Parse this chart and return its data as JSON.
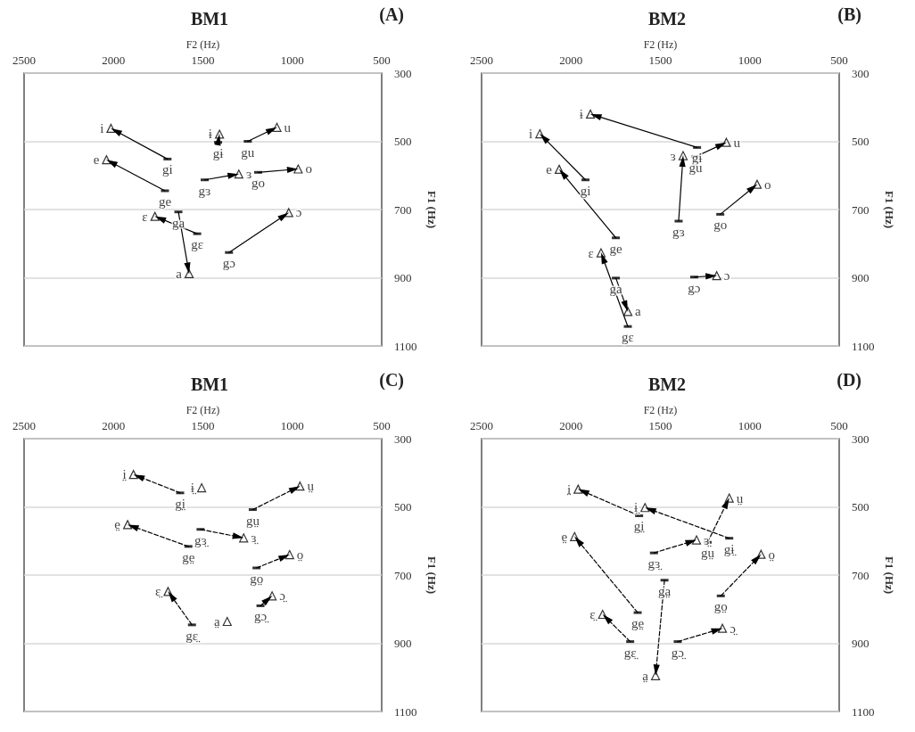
{
  "chart_data": [
    {
      "type": "scatter",
      "title": "BM1",
      "annotations": [
        "(A)"
      ],
      "xlabel": "F2 (Hz)",
      "ylabel": "F1 (Hz)",
      "xlim": [
        2500,
        500
      ],
      "xticks": [
        2500,
        2000,
        1500,
        1000,
        500
      ],
      "ylim": [
        1100,
        300
      ],
      "yticks": [
        300,
        500,
        700,
        900,
        1100
      ],
      "grid": "y",
      "series": [
        {
          "marker": "triangle",
          "color": "#000000",
          "x": [
            2014,
            1407,
            1086,
            2039,
            1299,
            967,
            1768,
            1020,
            1577
          ],
          "values": [
            462,
            479,
            459,
            554,
            596,
            581,
            720,
            709,
            888
          ],
          "value_labels": [
            "i",
            "ɨ",
            "u",
            "e",
            "ɜ",
            "o",
            "ɛ",
            "ɔ",
            "a"
          ]
        },
        {
          "marker": "square",
          "color": "#000000",
          "x": [
            1698,
            1415,
            1249,
            1490,
            1191,
            1712,
            1637,
            1532,
            1354
          ],
          "values": [
            552,
            503,
            500,
            613,
            591,
            645,
            707,
            771,
            826
          ],
          "value_labels": [
            "gi",
            "gɨ",
            "gu",
            "gɜ",
            "go",
            "ge",
            "ga",
            "gɛ",
            "gɔ"
          ]
        },
        {
          "type": "line",
          "line_style": "solid",
          "color": "#000000",
          "x": [
            1698,
            2014,
            null,
            1415,
            1407,
            null,
            1249,
            1086,
            null,
            1490,
            1299,
            null,
            1191,
            967,
            null,
            1712,
            2039,
            null,
            1637,
            1577,
            null,
            1532,
            1768,
            null,
            1354,
            1020
          ],
          "values": [
            552,
            462,
            null,
            503,
            479,
            null,
            500,
            459,
            null,
            613,
            596,
            null,
            591,
            581,
            null,
            645,
            554,
            null,
            707,
            888,
            null,
            771,
            720,
            null,
            826,
            709
          ]
        }
      ]
    },
    {
      "type": "scatter",
      "title": "BM2",
      "annotations": [
        "(B)"
      ],
      "xlabel": "F2 (Hz)",
      "ylabel": "F1 (Hz)",
      "xlim": [
        2500,
        500
      ],
      "xticks": [
        2500,
        2000,
        1500,
        1000,
        500
      ],
      "ylim": [
        1100,
        300
      ],
      "yticks": [
        300,
        500,
        700,
        900,
        1100
      ],
      "grid": "y",
      "series": [
        {
          "marker": "triangle",
          "color": "#000000",
          "x": [
            1891,
            2174,
            2066,
            1373,
            1131,
            959,
            1832,
            1185,
            1682
          ],
          "values": [
            420,
            478,
            582,
            542,
            503,
            626,
            827,
            894,
            999
          ],
          "value_labels": [
            "ɨ",
            "i",
            "e",
            "ɜ",
            "u",
            "o",
            "ɛ",
            "ɔ",
            "a"
          ]
        },
        {
          "marker": "square",
          "color": "#000000",
          "x": [
            1295,
            1303,
            1919,
            1398,
            1165,
            1749,
            1749,
            1311,
            1682
          ],
          "values": [
            518,
            545,
            613,
            734,
            714,
            783,
            901,
            898,
            1043
          ],
          "value_labels": [
            "gɨ",
            "gu",
            "gi",
            "gɜ",
            "go",
            "ge",
            "ga",
            "gɔ",
            "gɛ"
          ]
        },
        {
          "type": "line",
          "line_style": "solid",
          "color": "#000000",
          "x": [
            1295,
            1891,
            null,
            1303,
            1131,
            null,
            1919,
            2174,
            null,
            1398,
            1373,
            null,
            1165,
            959,
            null,
            1749,
            2066,
            null,
            1749,
            1682,
            null,
            1311,
            1185,
            null,
            1682,
            1832
          ],
          "values": [
            518,
            420,
            null,
            545,
            503,
            null,
            613,
            478,
            null,
            734,
            542,
            null,
            714,
            626,
            null,
            783,
            582,
            null,
            901,
            999,
            null,
            898,
            894,
            null,
            1043,
            827
          ]
        }
      ]
    },
    {
      "type": "scatter",
      "title": "BM1",
      "annotations": [
        "(C)"
      ],
      "xlabel": "F2 (Hz)",
      "ylabel": "F1 (Hz)",
      "xlim": [
        2500,
        500
      ],
      "xticks": [
        2500,
        2000,
        1500,
        1000,
        500
      ],
      "ylim": [
        1100,
        300
      ],
      "yticks": [
        300,
        500,
        700,
        900,
        1100
      ],
      "grid": "y",
      "series": [
        {
          "marker": "triangle",
          "color": "#000000",
          "x": [
            1888,
            1507,
            957,
            1921,
            1272,
            1015,
            1695,
            1113,
            1364
          ],
          "values": [
            405,
            444,
            439,
            552,
            591,
            640,
            748,
            761,
            836
          ],
          "value_labels": [
            "i̤",
            "ɨ̤",
            "ṳ",
            "e̤",
            "ɜ̤",
            "o̤",
            "ɛ̤",
            "ɔ̤",
            "a̤"
          ]
        },
        {
          "marker": "square",
          "color": "#000000",
          "x": [
            1627,
            1221,
            1513,
            1581,
            1200,
            1178,
            1561
          ],
          "values": [
            459,
            508,
            566,
            616,
            679,
            790,
            846
          ],
          "value_labels": [
            "gi̤",
            "gṳ",
            "gɜ̤",
            "ge̤",
            "go̤",
            "gɔ̤",
            "gɛ̤"
          ]
        },
        {
          "type": "line",
          "line_style": "dashed",
          "color": "#000000",
          "x": [
            1627,
            1888,
            null,
            1221,
            957,
            null,
            1513,
            1272,
            null,
            1581,
            1921,
            null,
            1200,
            1015,
            null,
            1178,
            1113,
            null,
            1561,
            1695
          ],
          "values": [
            459,
            405,
            null,
            508,
            439,
            null,
            566,
            591,
            null,
            616,
            552,
            null,
            679,
            640,
            null,
            790,
            761,
            null,
            846,
            748
          ]
        }
      ]
    },
    {
      "type": "scatter",
      "title": "BM2",
      "annotations": [
        "(D)"
      ],
      "xlabel": "F2 (Hz)",
      "ylabel": "F1 (Hz)",
      "xlim": [
        2500,
        500
      ],
      "xticks": [
        2500,
        2000,
        1500,
        1000,
        500
      ],
      "ylim": [
        1100,
        300
      ],
      "yticks": [
        300,
        500,
        700,
        900,
        1100
      ],
      "grid": "y",
      "series": [
        {
          "marker": "triangle",
          "color": "#000000",
          "x": [
            1960,
            1586,
            1115,
            1980,
            1298,
            937,
            1823,
            1153,
            1527
          ],
          "values": [
            448,
            502,
            474,
            587,
            597,
            639,
            815,
            856,
            995
          ],
          "value_labels": [
            "i̤",
            "ɨ̤",
            "ṳ",
            "e̤",
            "ɜ̤",
            "o̤",
            "ɛ̤",
            "ɔ̤",
            "a̤"
          ]
        },
        {
          "marker": "square",
          "color": "#000000",
          "x": [
            1619,
            1115,
            1236,
            1536,
            1477,
            1162,
            1627,
            1669,
            1403
          ],
          "values": [
            526,
            592,
            604,
            635,
            715,
            761,
            810,
            895,
            895
          ],
          "value_labels": [
            "gi̤",
            "gɨ̤",
            "gṳ",
            "gɜ̤",
            "ga̤",
            "go̤",
            "ge̤",
            "gɛ̤",
            "gɔ̤"
          ]
        },
        {
          "type": "line",
          "line_style": "dashed",
          "color": "#000000",
          "x": [
            1619,
            1960,
            null,
            1115,
            1586,
            null,
            1236,
            1115,
            null,
            1536,
            1298,
            null,
            1477,
            1527,
            null,
            1162,
            937,
            null,
            1627,
            1980,
            null,
            1669,
            1823,
            null,
            1403,
            1153
          ],
          "values": [
            526,
            448,
            null,
            592,
            502,
            null,
            604,
            474,
            null,
            635,
            597,
            null,
            715,
            995,
            null,
            761,
            639,
            null,
            810,
            587,
            null,
            895,
            815,
            null,
            895,
            856
          ]
        }
      ]
    }
  ]
}
